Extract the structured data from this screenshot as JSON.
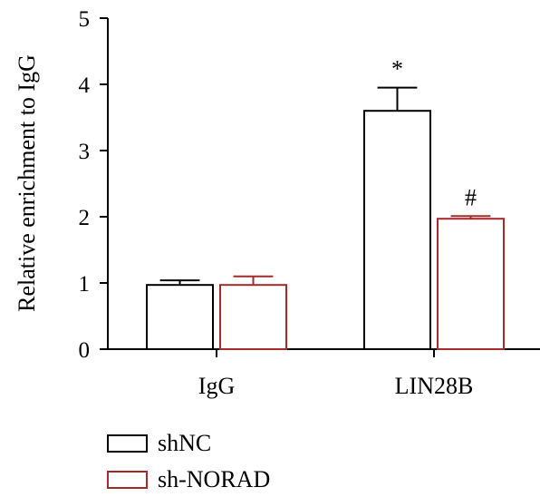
{
  "chart_data": {
    "type": "bar",
    "title": "",
    "xlabel": "",
    "ylabel": "Relative enrichment to IgG",
    "categories": [
      "IgG",
      "LIN28B"
    ],
    "ylim": [
      0,
      5
    ],
    "yticks": [
      "0",
      "1",
      "2",
      "3",
      "4",
      "5"
    ],
    "series": [
      {
        "name": "shNC",
        "values": [
          0.97,
          3.6
        ],
        "errors": [
          0.07,
          0.35
        ],
        "color": "#000000",
        "annotations": [
          "",
          "*"
        ]
      },
      {
        "name": "sh-NORAD",
        "values": [
          0.97,
          1.97
        ],
        "errors": [
          0.13,
          0.04
        ],
        "color": "#a52a2a",
        "annotations": [
          "",
          "#"
        ]
      }
    ],
    "grid": false,
    "legend_position": "bottom-left"
  }
}
